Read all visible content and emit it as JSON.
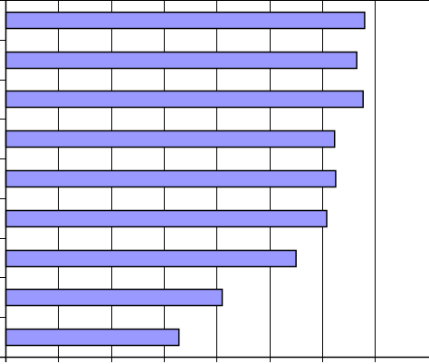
{
  "chart_data": {
    "type": "bar",
    "orientation": "horizontal",
    "title": "",
    "xlabel": "",
    "ylabel": "",
    "categories": [
      "",
      "",
      "",
      "",
      "",
      "",
      "",
      "",
      ""
    ],
    "values": [
      6.8,
      6.65,
      6.77,
      6.23,
      6.25,
      6.08,
      5.5,
      4.1,
      3.28
    ],
    "xlim": [
      0,
      8
    ],
    "x_gridlines": [
      1,
      2,
      3,
      4,
      5,
      6,
      7
    ],
    "grid": true,
    "legend": "none",
    "bar_color": "#9999ff",
    "bar_edge_color": "#000000",
    "grid_color": "#000000",
    "background_color": "#ffffff"
  }
}
